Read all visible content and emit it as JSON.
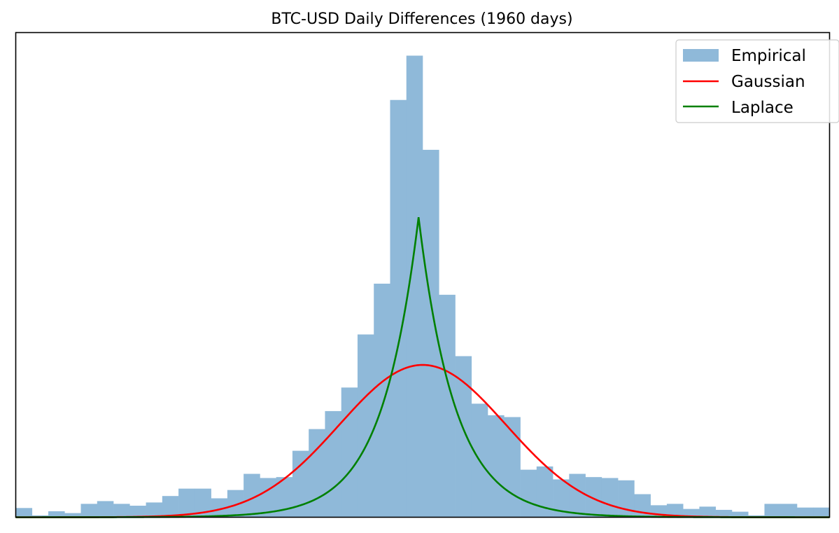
{
  "chart_data": {
    "type": "bar",
    "title": "BTC-USD Daily Differences (1960 days)",
    "xlabel": "",
    "ylabel": "",
    "axes_visible": false,
    "grid": false,
    "legend_position": "top-right",
    "bin_count": 50,
    "ylim": [
      0,
      1.05
    ],
    "bin_heights": [
      0.02,
      0.004,
      0.013,
      0.009,
      0.029,
      0.035,
      0.029,
      0.025,
      0.032,
      0.046,
      0.062,
      0.062,
      0.041,
      0.059,
      0.094,
      0.085,
      0.087,
      0.144,
      0.191,
      0.23,
      0.281,
      0.396,
      0.506,
      0.904,
      1.0,
      0.796,
      0.482,
      0.349,
      0.246,
      0.221,
      0.217,
      0.103,
      0.11,
      0.082,
      0.094,
      0.087,
      0.085,
      0.08,
      0.05,
      0.026,
      0.029,
      0.018,
      0.023,
      0.016,
      0.012,
      0.004,
      0.029,
      0.029,
      0.021,
      0.021
    ],
    "series": [
      {
        "name": "Empirical",
        "kind": "hist",
        "color": "#8fb9d9"
      },
      {
        "name": "Gaussian",
        "kind": "curve",
        "color": "#ff0000",
        "center": 0.0,
        "peak": 0.33,
        "sigma": 0.205
      },
      {
        "name": "Laplace",
        "kind": "curve",
        "color": "#008000",
        "center": -0.01,
        "peak": 0.65,
        "scale": 0.09
      }
    ],
    "x_domain": [
      -1.0,
      1.0
    ]
  }
}
